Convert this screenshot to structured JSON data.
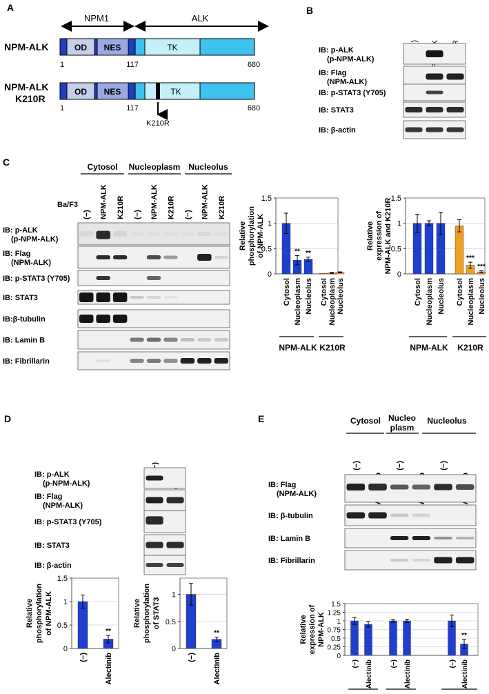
{
  "panel_labels": {
    "a": "A",
    "b": "B",
    "c": "C",
    "d": "D",
    "e": "E"
  },
  "panel_a": {
    "npm1_label": "NPM1",
    "alk_label": "ALK",
    "wt_name": "NPM-ALK",
    "mut_name_1": "NPM-ALK",
    "mut_name_2": "K210R",
    "domain_od": "OD",
    "domain_nes": "NES",
    "domain_tk": "TK",
    "pos_start": "1",
    "pos_junction": "117",
    "pos_end": "680",
    "mutation_label": "K210R",
    "colors": {
      "dark_blue": "#1f3fbf",
      "light_blue": "#8ed8f0",
      "tk": "#b9ecf8",
      "od": "#c5cfe8"
    }
  },
  "panel_b": {
    "lanes": [
      "(-)",
      "NPM-ALK",
      "K210R"
    ],
    "blots": [
      {
        "l1": "IB: p-ALK",
        "l2": "(p-NPM-ALK)"
      },
      {
        "l1": "IB: Flag",
        "l2": "(NPM-ALK)"
      },
      {
        "l1": "IB: p-STAT3 (Y705)",
        "l2": ""
      },
      {
        "l1": "IB: STAT3",
        "l2": ""
      },
      {
        "l1": "IB: β-actin",
        "l2": ""
      }
    ]
  },
  "panel_c": {
    "fractions": [
      "Cytosol",
      "Nucleoplasm",
      "Nucleolus"
    ],
    "cell_line": "Ba/F3",
    "lanes": [
      "(−)",
      "NPM-ALK",
      "K210R",
      "(−)",
      "NPM-ALK",
      "K210R",
      "(−)",
      "NPM-ALK",
      "K210R"
    ],
    "blots": [
      {
        "l1": "IB: p-ALK",
        "l2": "(p-NPM-ALK)"
      },
      {
        "l1": "IB: Flag",
        "l2": "(NPM-ALK)"
      },
      {
        "l1": "IB: p-STAT3 (Y705)",
        "l2": ""
      },
      {
        "l1": "IB: STAT3",
        "l2": ""
      },
      {
        "l1": "IB:β-tubulin",
        "l2": ""
      },
      {
        "l1": "IB: Lamin B",
        "l2": ""
      },
      {
        "l1": "IB: Fibrillarin",
        "l2": ""
      }
    ]
  },
  "panel_d": {
    "lanes": [
      "(−)",
      "Alectinib"
    ],
    "blots": [
      {
        "l1": "IB: p-ALK",
        "l2": "(p-NPM-ALK)"
      },
      {
        "l1": "IB: Flag",
        "l2": "(NPM-ALK)"
      },
      {
        "l1": "IB: p-STAT3 (Y705)",
        "l2": ""
      },
      {
        "l1": "IB: STAT3",
        "l2": ""
      },
      {
        "l1": "IB: β-actin",
        "l2": ""
      }
    ]
  },
  "panel_e": {
    "fractions": [
      "Cytosol",
      "Nucleo",
      "plasm",
      "Nucleolus"
    ],
    "lanes": [
      "(−)",
      "Alectinib",
      "(−)",
      "Alectinib",
      "(−)",
      "Alectinib"
    ],
    "blots": [
      {
        "l1": "IB: Flag",
        "l2": "(NPM-ALK)"
      },
      {
        "l1": "IB: β-tubulin",
        "l2": ""
      },
      {
        "l1": "IB: Lamin B",
        "l2": ""
      },
      {
        "l1": "IB: Fibrillarin",
        "l2": ""
      }
    ]
  },
  "chart_data": [
    {
      "id": "c_phos",
      "type": "bar",
      "ylabel_lines": [
        "Relative",
        "phosphorylation",
        "of NPM-ALK"
      ],
      "ylim": [
        0,
        1.5
      ],
      "yticks": [
        0,
        0.5,
        1,
        1.5
      ],
      "yticklabels": [
        "0",
        "0.5",
        "1",
        "1.5"
      ],
      "categories": [
        "Cytosol",
        "Nucleoplasm",
        "Nucleolus",
        "Cytosol",
        "Nucleoplasm",
        "Nucleolus"
      ],
      "values": [
        1.0,
        0.27,
        0.29,
        0.01,
        0.02,
        0.03
      ],
      "errors": [
        0.2,
        0.09,
        0.04,
        0.0,
        0.01,
        0.01
      ],
      "significance": [
        "",
        "**",
        "**",
        "",
        "",
        ""
      ],
      "bar_colors": [
        "#1f3fcf",
        "#1f3fcf",
        "#1f3fcf",
        "#f0a020",
        "#f0a020",
        "#f0a020"
      ],
      "groups": [
        "NPM-ALK",
        "K210R"
      ],
      "grid": true
    },
    {
      "id": "c_expr",
      "type": "bar",
      "ylabel_lines": [
        "Relative",
        "expression of",
        "NPM-ALK and K210R"
      ],
      "ylim": [
        0,
        1.5
      ],
      "yticks": [
        0,
        0.5,
        1,
        1.5
      ],
      "yticklabels": [
        "0",
        "0.5",
        "1",
        "1.5"
      ],
      "categories": [
        "Cytosol",
        "Nucleoplasm",
        "Nucleolus",
        "Cytosol",
        "Nucleoplasm",
        "Nucleolus"
      ],
      "values": [
        1.0,
        1.0,
        1.0,
        0.95,
        0.17,
        0.04
      ],
      "errors": [
        0.18,
        0.05,
        0.22,
        0.12,
        0.06,
        0.02
      ],
      "significance": [
        "",
        "",
        "",
        "",
        "***",
        "***"
      ],
      "bar_colors": [
        "#1f3fcf",
        "#1f3fcf",
        "#1f3fcf",
        "#f0a020",
        "#f0a020",
        "#f0a020"
      ],
      "groups": [
        "NPM-ALK",
        "K210R"
      ],
      "grid": true
    },
    {
      "id": "d_phos_npm",
      "type": "bar",
      "ylabel_lines": [
        "Relative",
        "phosphorylation",
        "of NPM-ALK"
      ],
      "ylim": [
        0,
        1.5
      ],
      "yticks": [
        0,
        0.5,
        1,
        1.5
      ],
      "yticklabels": [
        "0",
        "0.5",
        "1",
        "1.5"
      ],
      "categories": [
        "(−)",
        "Alectinib"
      ],
      "values": [
        1.0,
        0.2
      ],
      "errors": [
        0.14,
        0.08
      ],
      "significance": [
        "",
        "**"
      ],
      "bar_colors": [
        "#1f3fcf",
        "#1f3fcf"
      ],
      "groups": [],
      "grid": true
    },
    {
      "id": "d_phos_stat3",
      "type": "bar",
      "ylabel_lines": [
        "Relative",
        "phosphorylation",
        "of STAT3"
      ],
      "ylim": [
        0,
        1.3
      ],
      "yticks": [
        0,
        0.5,
        1
      ],
      "yticklabels": [
        "0",
        "0.5",
        "1"
      ],
      "categories": [
        "(−)",
        "Alectinib"
      ],
      "values": [
        1.0,
        0.17
      ],
      "errors": [
        0.2,
        0.04
      ],
      "significance": [
        "",
        "**"
      ],
      "bar_colors": [
        "#1f3fcf",
        "#1f3fcf"
      ],
      "groups": [],
      "grid": true
    },
    {
      "id": "e_expr",
      "type": "bar",
      "ylabel_lines": [
        "Relative",
        "expression of",
        "NPM-ALK"
      ],
      "ylim": [
        0,
        1.5
      ],
      "yticks": [
        0,
        0.25,
        0.5,
        0.75,
        1,
        1.25,
        1.5
      ],
      "yticklabels": [
        "0",
        "0.25",
        "0.5",
        "0.75",
        "1",
        "1.25",
        "1.5"
      ],
      "categories": [
        "(−)",
        "Alectinib",
        "(−)",
        "Alectinib",
        "(−)",
        "Alectinib"
      ],
      "values": [
        1.0,
        0.9,
        1.0,
        1.0,
        1.0,
        0.33
      ],
      "errors": [
        0.1,
        0.08,
        0.04,
        0.05,
        0.17,
        0.13
      ],
      "significance": [
        "",
        "",
        "",
        "",
        "",
        "**"
      ],
      "bar_colors": [
        "#1f3fcf",
        "#1f3fcf",
        "#1f3fcf",
        "#1f3fcf",
        "#1f3fcf",
        "#1f3fcf"
      ],
      "groups": [
        "Cytosol",
        "Nucleo plasm",
        "Nucleolus"
      ],
      "grid": true
    }
  ]
}
